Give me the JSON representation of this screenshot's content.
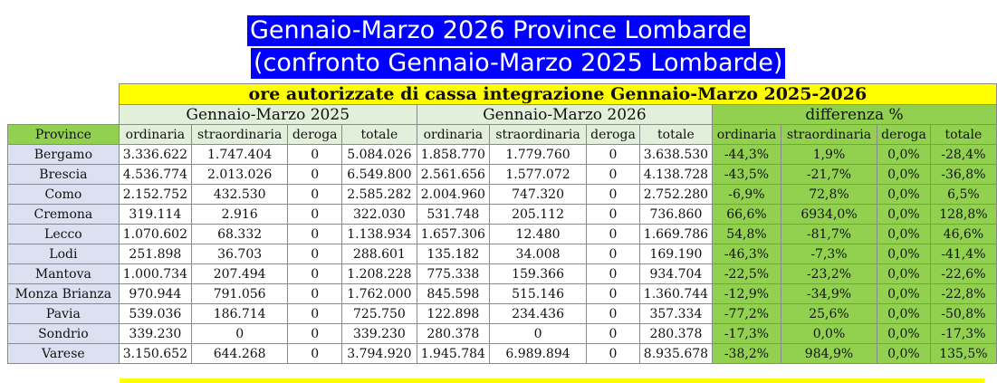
{
  "title": {
    "line1": "Gennaio-Marzo 2026 Province Lombarde",
    "line2": " (confronto Gennaio-Marzo 2025 Lombarde)"
  },
  "table": {
    "banner": "ore autorizzate di cassa integrazione Gennaio-Marzo 2025-2026",
    "groups": [
      "Gennaio-Marzo 2025",
      "Gennaio-Marzo 2026",
      "differenza %"
    ],
    "columns": [
      "Province",
      "ordinaria",
      "straordinaria",
      "deroga",
      "totale",
      "ordinaria",
      "straordinaria",
      "deroga",
      "totale",
      "ordinaria",
      "straordinaria",
      "deroga",
      "totale"
    ],
    "rows": [
      [
        "Bergamo",
        "3.336.622",
        "1.747.404",
        "0",
        "5.084.026",
        "1.858.770",
        "1.779.760",
        "0",
        "3.638.530",
        "-44,3%",
        "1,9%",
        "0,0%",
        "-28,4%"
      ],
      [
        "Brescia",
        "4.536.774",
        "2.013.026",
        "0",
        "6.549.800",
        "2.561.656",
        "1.577.072",
        "0",
        "4.138.728",
        "-43,5%",
        "-21,7%",
        "0,0%",
        "-36,8%"
      ],
      [
        "Como",
        "2.152.752",
        "432.530",
        "0",
        "2.585.282",
        "2.004.960",
        "747.320",
        "0",
        "2.752.280",
        "-6,9%",
        "72,8%",
        "0,0%",
        "6,5%"
      ],
      [
        "Cremona",
        "319.114",
        "2.916",
        "0",
        "322.030",
        "531.748",
        "205.112",
        "0",
        "736.860",
        "66,6%",
        "6934,0%",
        "0,0%",
        "128,8%"
      ],
      [
        "Lecco",
        "1.070.602",
        "68.332",
        "0",
        "1.138.934",
        "1.657.306",
        "12.480",
        "0",
        "1.669.786",
        "54,8%",
        "-81,7%",
        "0,0%",
        "46,6%"
      ],
      [
        "Lodi",
        "251.898",
        "36.703",
        "0",
        "288.601",
        "135.182",
        "34.008",
        "0",
        "169.190",
        "-46,3%",
        "-7,3%",
        "0,0%",
        "-41,4%"
      ],
      [
        "Mantova",
        "1.000.734",
        "207.494",
        "0",
        "1.208.228",
        "775.338",
        "159.366",
        "0",
        "934.704",
        "-22,5%",
        "-23,2%",
        "0,0%",
        "-22,6%"
      ],
      [
        "Monza Brianza",
        "970.944",
        "791.056",
        "0",
        "1.762.000",
        "845.598",
        "515.146",
        "0",
        "1.360.744",
        "-12,9%",
        "-34,9%",
        "0,0%",
        "-22,8%"
      ],
      [
        "Pavia",
        "539.036",
        "186.714",
        "0",
        "725.750",
        "122.898",
        "234.436",
        "0",
        "357.334",
        "-77,2%",
        "25,6%",
        "0,0%",
        "-50,8%"
      ],
      [
        "Sondrio",
        "339.230",
        "0",
        "0",
        "339.230",
        "280.378",
        "0",
        "0",
        "280.378",
        "-17,3%",
        "0,0%",
        "0,0%",
        "-17,3%"
      ],
      [
        "Varese",
        "3.150.652",
        "644.268",
        "0",
        "3.794.920",
        "1.945.784",
        "6.989.894",
        "0",
        "8.935.678",
        "-38,2%",
        "984,9%",
        "0,0%",
        "135,5%"
      ]
    ]
  }
}
